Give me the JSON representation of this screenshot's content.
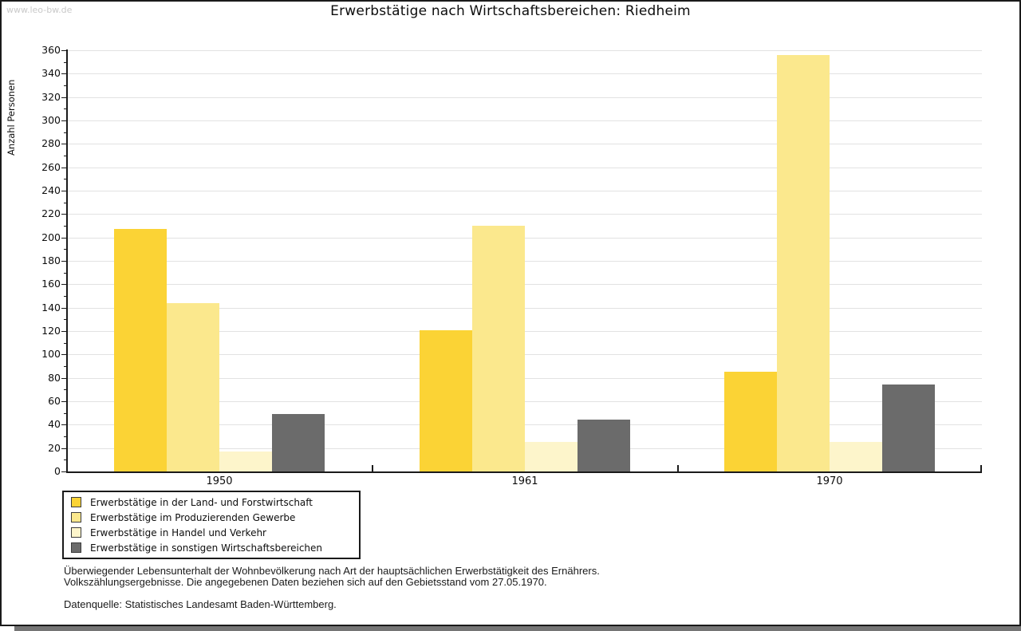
{
  "watermark": "www.leo-bw.de",
  "footnotes": {
    "line1": "Überwiegender Lebensunterhalt der Wohnbevölkerung nach Art der hauptsächlichen Erwerbstätigkeit des Ernährers.",
    "line2": "Volkszählungsergebnisse. Die angegebenen Daten beziehen sich auf den Gebietsstand vom 27.05.1970.",
    "source": "Datenquelle: Statistisches Landesamt Baden-Württemberg."
  },
  "chart_data": {
    "type": "bar",
    "title": "Erwerbstätige nach Wirtschaftsbereichen: Riedheim",
    "xlabel": "",
    "ylabel": "Anzahl Personen",
    "ylim": [
      0,
      360
    ],
    "ytick_step": 20,
    "yminor_step": 10,
    "grid": true,
    "legend_position": "bottom-left",
    "categories": [
      "1950",
      "1961",
      "1970"
    ],
    "series": [
      {
        "key": "land-forstwirtschaft",
        "name": "Erwerbstätige in der Land- und Forstwirtschaft",
        "color": "#FBD335",
        "values": [
          207,
          121,
          85
        ]
      },
      {
        "key": "produzierendes-gewerbe",
        "name": "Erwerbstätige im Produzierenden Gewerbe",
        "color": "#FBE88D",
        "values": [
          144,
          210,
          356
        ]
      },
      {
        "key": "handel-verkehr",
        "name": "Erwerbstätige in Handel und Verkehr",
        "color": "#FDF5CB",
        "values": [
          17,
          25,
          25
        ]
      },
      {
        "key": "sonstige-wirtschaftsbereiche",
        "name": "Erwerbstätige in sonstigen Wirtschaftsbereichen",
        "color": "#6B6B6B",
        "values": [
          49,
          44,
          74
        ]
      }
    ]
  }
}
